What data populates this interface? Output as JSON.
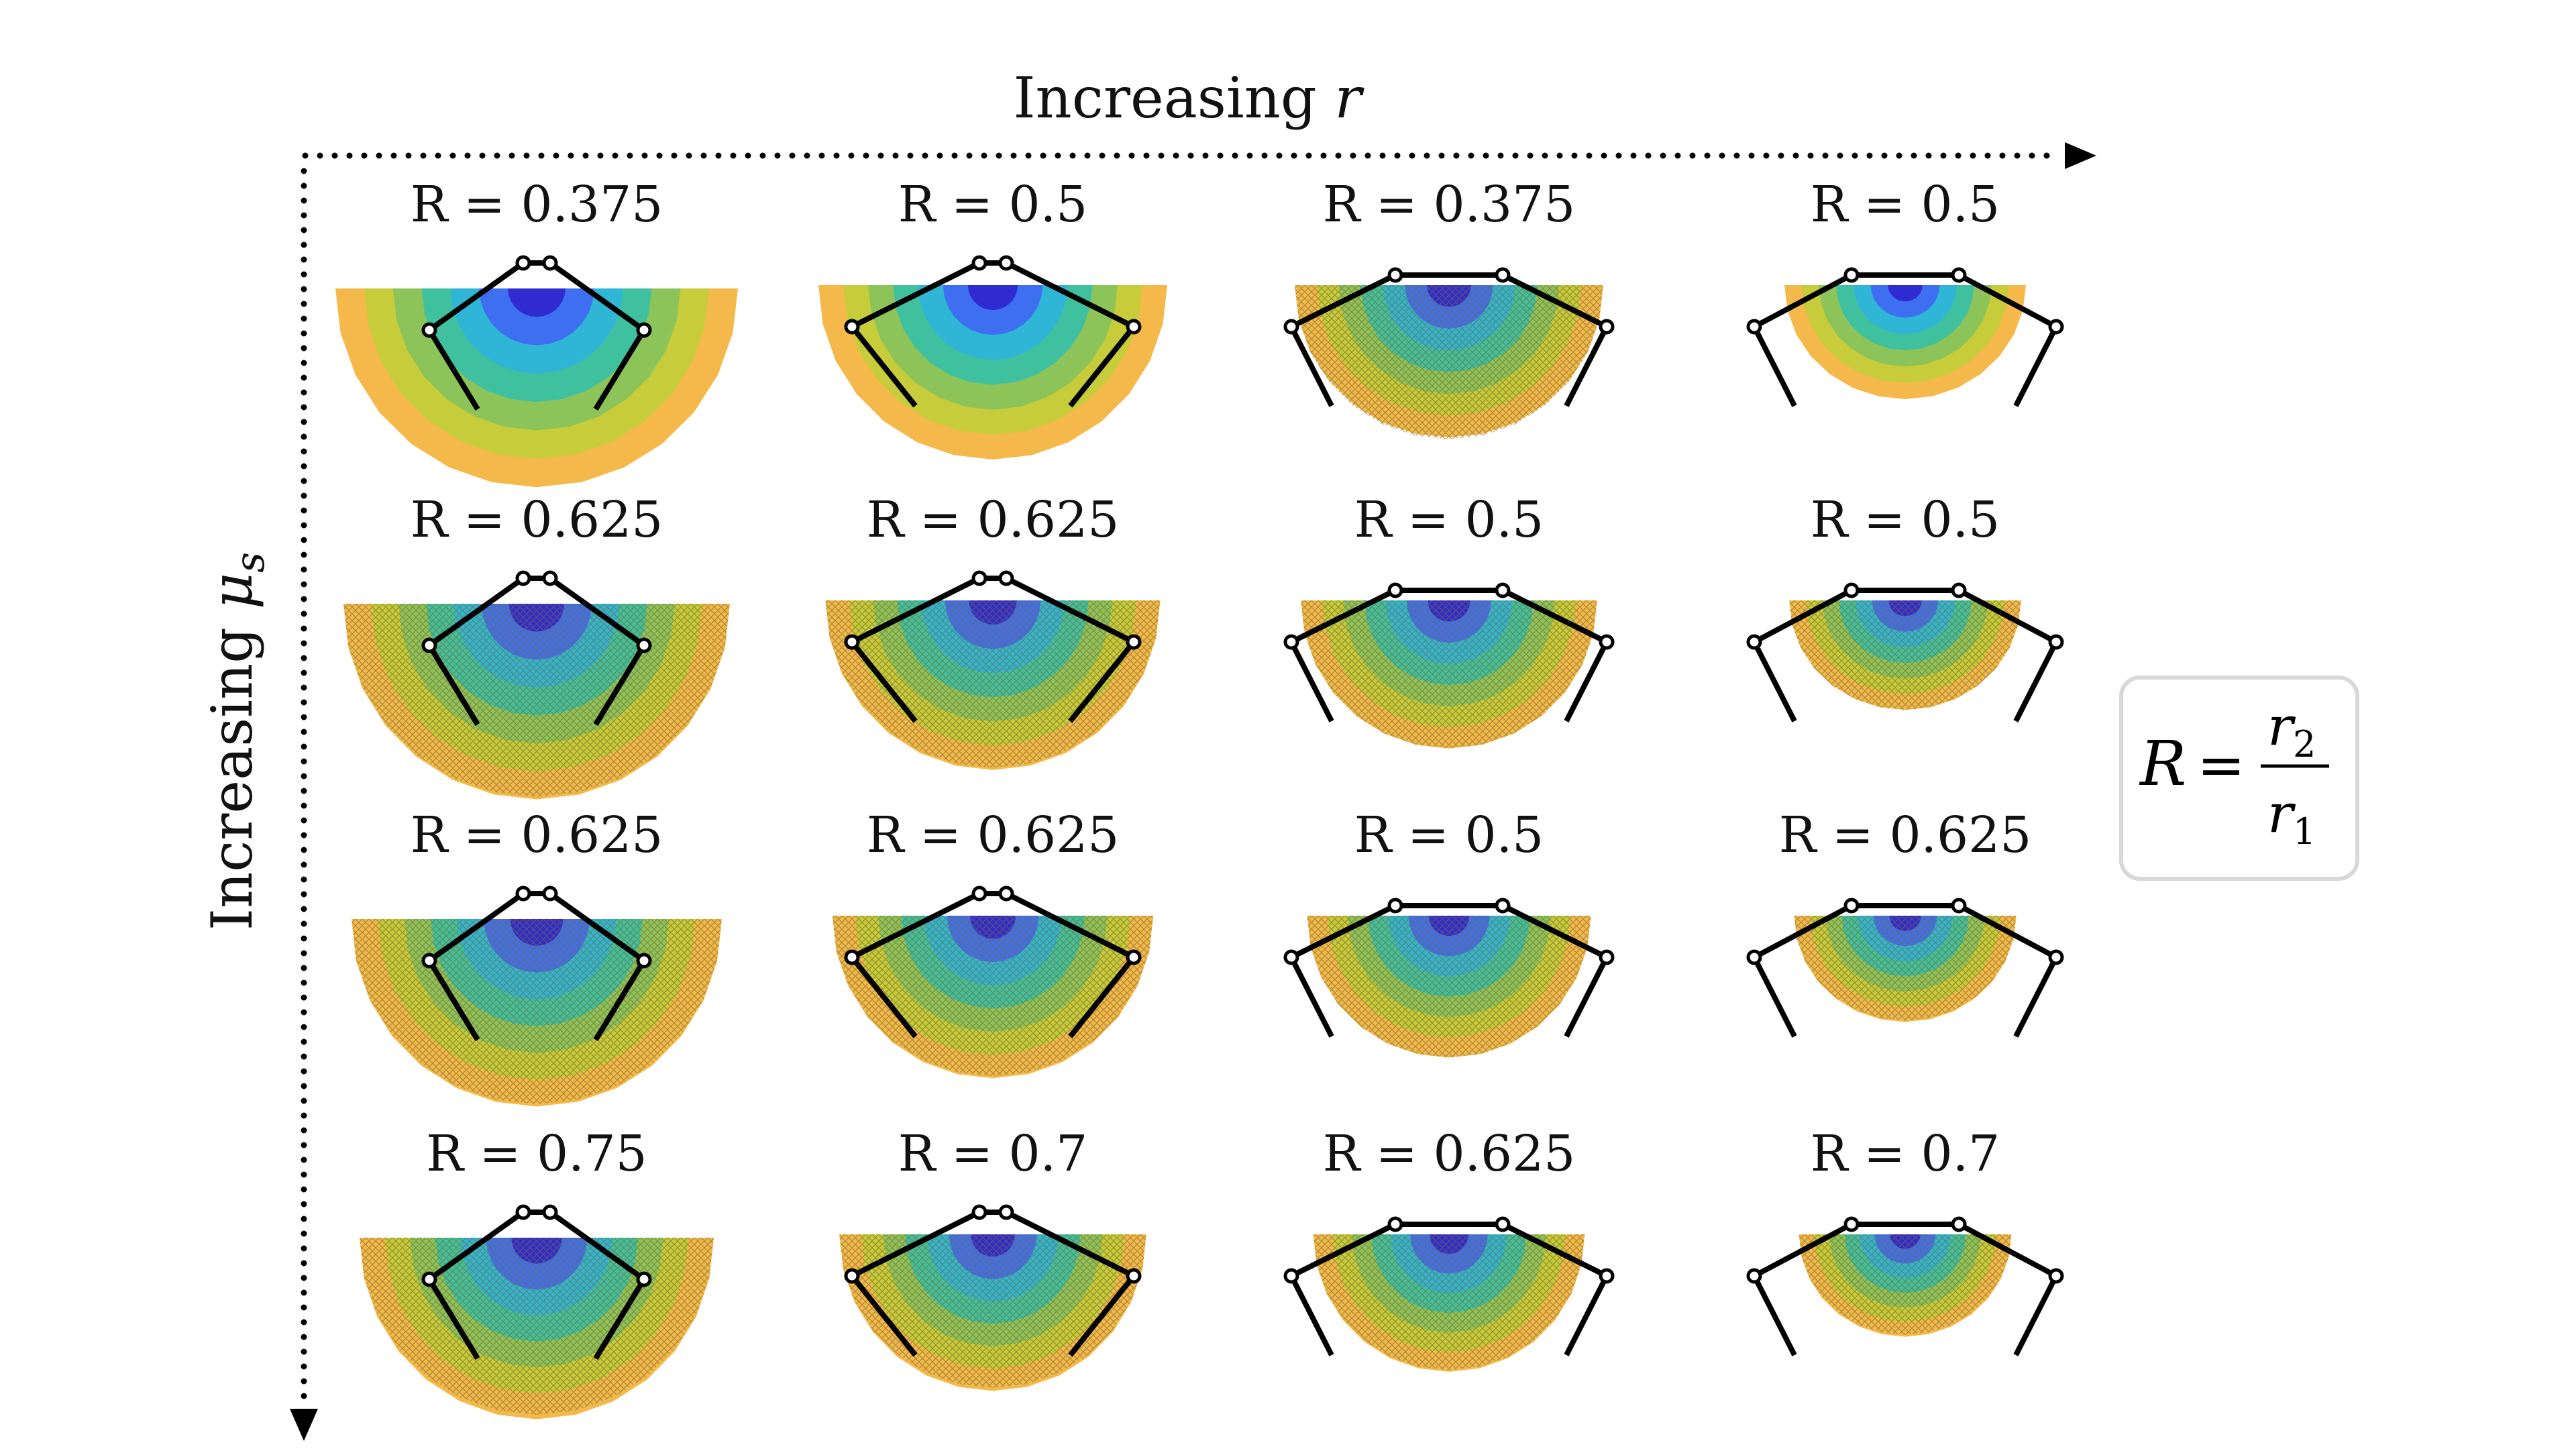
{
  "axes": {
    "x_title_text": "Increasing ",
    "x_title_var": "r",
    "y_title_text": "Increasing ",
    "y_title_var": "μ",
    "y_title_sub": "s"
  },
  "legend": {
    "lhs": "R",
    "equals": "=",
    "numerator": "r",
    "numerator_sub": "2",
    "denominator": "r",
    "denominator_sub": "1"
  },
  "colors": {
    "blue_dark": "#2f2bd0",
    "blue": "#3d6ff0",
    "cyan": "#2fb6d6",
    "teal": "#3fc1a0",
    "green": "#8cc45a",
    "yellow_green": "#c6cc3a",
    "orange": "#f4b94a",
    "mechanism": "#000000"
  },
  "grid": [
    {
      "row": 1,
      "col": 1,
      "label": "R = 0.375",
      "R": 0.375
    },
    {
      "row": 1,
      "col": 2,
      "label": "R = 0.5",
      "R": 0.5
    },
    {
      "row": 1,
      "col": 3,
      "label": "R = 0.375",
      "R": 0.375
    },
    {
      "row": 1,
      "col": 4,
      "label": "R = 0.5",
      "R": 0.5
    },
    {
      "row": 2,
      "col": 1,
      "label": "R = 0.625",
      "R": 0.625
    },
    {
      "row": 2,
      "col": 2,
      "label": "R = 0.625",
      "R": 0.625
    },
    {
      "row": 2,
      "col": 3,
      "label": "R = 0.5",
      "R": 0.5
    },
    {
      "row": 2,
      "col": 4,
      "label": "R = 0.5",
      "R": 0.5
    },
    {
      "row": 3,
      "col": 1,
      "label": "R = 0.625",
      "R": 0.625
    },
    {
      "row": 3,
      "col": 2,
      "label": "R = 0.625",
      "R": 0.625
    },
    {
      "row": 3,
      "col": 3,
      "label": "R = 0.5",
      "R": 0.5
    },
    {
      "row": 3,
      "col": 4,
      "label": "R = 0.625",
      "R": 0.625
    },
    {
      "row": 4,
      "col": 1,
      "label": "R = 0.75",
      "R": 0.75
    },
    {
      "row": 4,
      "col": 2,
      "label": "R = 0.7",
      "R": 0.7
    },
    {
      "row": 4,
      "col": 3,
      "label": "R = 0.625",
      "R": 0.625
    },
    {
      "row": 4,
      "col": 4,
      "label": "R = 0.7",
      "R": 0.7
    }
  ]
}
